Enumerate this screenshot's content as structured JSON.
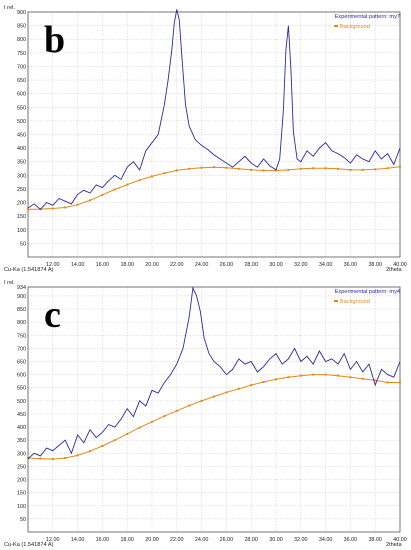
{
  "colors": {
    "experimental": "#2b2b9a",
    "background": "#e08a1a",
    "grid": "#c8c8c8",
    "frame": "#555555"
  },
  "chart_data": [
    {
      "type": "line",
      "panel_label": "b",
      "ylabel": "I rel.",
      "xlabel": "2theta",
      "source_label": "Cu-Ka (1.541874 A)",
      "xlim": [
        10,
        40
      ],
      "ylim": [
        0,
        900
      ],
      "x_ticks": [
        "12.00",
        "14.00",
        "16.00",
        "18.00",
        "20.00",
        "22.00",
        "24.00",
        "26.00",
        "28.00",
        "30.00",
        "32.00",
        "34.00",
        "36.00",
        "38.00",
        "40.00"
      ],
      "y_ticks": [
        "50",
        "100",
        "150",
        "200",
        "250",
        "300",
        "350",
        "400",
        "450",
        "500",
        "550",
        "600",
        "650",
        "700",
        "750",
        "800",
        "850",
        "900"
      ],
      "series": [
        {
          "name": "Experimental pattern: my7",
          "x": [
            10.0,
            10.5,
            11.0,
            11.5,
            12.0,
            12.5,
            13.0,
            13.5,
            14.0,
            14.5,
            15.0,
            15.5,
            16.0,
            16.5,
            17.0,
            17.5,
            18.0,
            18.5,
            19.0,
            19.5,
            20.0,
            20.5,
            21.0,
            21.3,
            21.6,
            21.8,
            22.0,
            22.2,
            22.4,
            22.7,
            23.0,
            23.5,
            24.0,
            24.5,
            25.0,
            25.5,
            26.0,
            26.5,
            27.0,
            27.5,
            28.0,
            28.5,
            29.0,
            29.5,
            30.0,
            30.3,
            30.6,
            30.8,
            31.0,
            31.2,
            31.4,
            31.7,
            32.0,
            32.5,
            33.0,
            33.5,
            34.0,
            34.5,
            35.0,
            35.5,
            36.0,
            36.5,
            37.0,
            37.5,
            38.0,
            38.5,
            39.0,
            39.5,
            40.0
          ],
          "values": [
            180,
            195,
            175,
            200,
            190,
            215,
            205,
            195,
            230,
            245,
            235,
            265,
            255,
            280,
            300,
            285,
            330,
            350,
            320,
            390,
            420,
            450,
            560,
            650,
            760,
            860,
            910,
            870,
            740,
            560,
            480,
            430,
            410,
            395,
            375,
            360,
            345,
            330,
            350,
            370,
            345,
            330,
            360,
            335,
            320,
            360,
            540,
            760,
            850,
            690,
            460,
            360,
            350,
            390,
            370,
            400,
            420,
            390,
            380,
            365,
            345,
            375,
            360,
            350,
            390,
            360,
            380,
            340,
            400
          ]
        },
        {
          "name": "Background",
          "x": [
            10.0,
            11.0,
            12.0,
            13.0,
            14.0,
            15.0,
            16.0,
            17.0,
            18.0,
            19.0,
            20.0,
            21.0,
            22.0,
            23.0,
            24.0,
            25.0,
            26.0,
            27.0,
            28.0,
            29.0,
            30.0,
            31.0,
            32.0,
            33.0,
            34.0,
            35.0,
            36.0,
            37.0,
            38.0,
            39.0,
            40.0
          ],
          "values": [
            175,
            176,
            178,
            182,
            192,
            208,
            228,
            248,
            266,
            282,
            296,
            308,
            318,
            324,
            328,
            330,
            328,
            324,
            320,
            318,
            318,
            320,
            324,
            326,
            326,
            324,
            320,
            320,
            322,
            326,
            332
          ]
        }
      ]
    },
    {
      "type": "line",
      "panel_label": "c",
      "ylabel": "I rel.",
      "xlabel": "2theta",
      "source_label": "Cu-Ka (1.541874 A)",
      "xlim": [
        10,
        40
      ],
      "ylim": [
        0,
        934
      ],
      "x_ticks": [
        "12.00",
        "14.00",
        "16.00",
        "18.00",
        "20.00",
        "22.00",
        "24.00",
        "26.00",
        "28.00",
        "30.00",
        "32.00",
        "34.00",
        "36.00",
        "38.00",
        "40.00"
      ],
      "y_ticks": [
        "50",
        "100",
        "150",
        "200",
        "250",
        "300",
        "350",
        "400",
        "450",
        "500",
        "550",
        "600",
        "650",
        "700",
        "750",
        "800",
        "850",
        "900",
        "934"
      ],
      "series": [
        {
          "name": "Experimental pattern: my4",
          "x": [
            10.0,
            10.5,
            11.0,
            11.5,
            12.0,
            12.5,
            13.0,
            13.5,
            14.0,
            14.5,
            15.0,
            15.5,
            16.0,
            16.5,
            17.0,
            17.5,
            18.0,
            18.5,
            19.0,
            19.5,
            20.0,
            20.5,
            21.0,
            21.5,
            22.0,
            22.5,
            23.0,
            23.3,
            23.6,
            23.9,
            24.2,
            24.6,
            25.0,
            25.5,
            26.0,
            26.5,
            27.0,
            27.5,
            28.0,
            28.5,
            29.0,
            29.5,
            30.0,
            30.5,
            31.0,
            31.5,
            32.0,
            32.5,
            33.0,
            33.5,
            34.0,
            34.5,
            35.0,
            35.5,
            36.0,
            36.5,
            37.0,
            37.5,
            38.0,
            38.5,
            39.0,
            39.5,
            40.0
          ],
          "values": [
            280,
            300,
            290,
            320,
            310,
            330,
            350,
            300,
            370,
            340,
            390,
            360,
            380,
            410,
            400,
            430,
            470,
            440,
            500,
            480,
            540,
            530,
            570,
            600,
            640,
            700,
            820,
            930,
            900,
            840,
            740,
            680,
            650,
            630,
            600,
            620,
            660,
            640,
            650,
            610,
            630,
            660,
            680,
            640,
            660,
            700,
            650,
            670,
            640,
            690,
            650,
            660,
            640,
            680,
            620,
            650,
            610,
            640,
            560,
            620,
            600,
            590,
            650
          ]
        },
        {
          "name": "Background",
          "x": [
            10.0,
            11.0,
            12.0,
            13.0,
            14.0,
            15.0,
            16.0,
            17.0,
            18.0,
            19.0,
            20.0,
            21.0,
            22.0,
            23.0,
            24.0,
            25.0,
            26.0,
            27.0,
            28.0,
            29.0,
            30.0,
            31.0,
            32.0,
            33.0,
            34.0,
            35.0,
            36.0,
            37.0,
            38.0,
            39.0,
            40.0
          ],
          "values": [
            282,
            280,
            278,
            282,
            292,
            308,
            328,
            350,
            374,
            398,
            420,
            442,
            462,
            482,
            500,
            516,
            532,
            546,
            560,
            572,
            582,
            590,
            596,
            600,
            600,
            596,
            590,
            584,
            578,
            570,
            570
          ]
        }
      ]
    }
  ]
}
